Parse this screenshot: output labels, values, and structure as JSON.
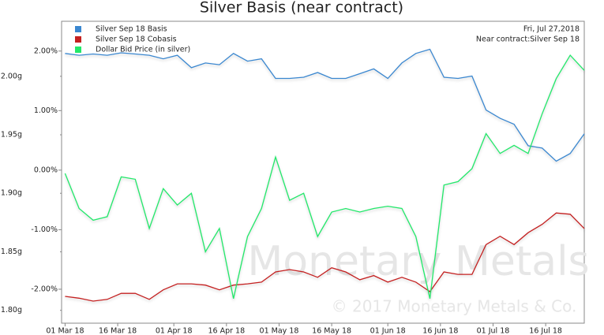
{
  "chart_data": {
    "type": "line",
    "title": "Silver Basis (near contract)",
    "annotations": [
      "Fri, Jul 27,2018",
      "Near contract:Silver Sep 18"
    ],
    "watermark": [
      "Monetary Metals",
      "© 2017 Monetary Metals & Co."
    ],
    "x": [
      "2018-03-01",
      "2018-03-05",
      "2018-03-09",
      "2018-03-13",
      "2018-03-17",
      "2018-03-21",
      "2018-03-25",
      "2018-03-29",
      "2018-04-02",
      "2018-04-06",
      "2018-04-10",
      "2018-04-14",
      "2018-04-18",
      "2018-04-22",
      "2018-04-26",
      "2018-04-30",
      "2018-05-04",
      "2018-05-08",
      "2018-05-12",
      "2018-05-16",
      "2018-05-20",
      "2018-05-24",
      "2018-05-28",
      "2018-06-01",
      "2018-06-05",
      "2018-06-09",
      "2018-06-13",
      "2018-06-17",
      "2018-06-21",
      "2018-06-25",
      "2018-06-29",
      "2018-07-03",
      "2018-07-07",
      "2018-07-11",
      "2018-07-15",
      "2018-07-19",
      "2018-07-23",
      "2018-07-27"
    ],
    "xlim": [
      "2018-02-28",
      "2018-07-27"
    ],
    "xticks": [
      {
        "value": "2018-03-01",
        "label": "01 Mar 18"
      },
      {
        "value": "2018-03-16",
        "label": "16 Mar 18"
      },
      {
        "value": "2018-04-01",
        "label": "01 Apr 18"
      },
      {
        "value": "2018-04-16",
        "label": "16 Apr 18"
      },
      {
        "value": "2018-05-01",
        "label": "01 May 18"
      },
      {
        "value": "2018-05-16",
        "label": "16 May 18"
      },
      {
        "value": "2018-06-01",
        "label": "01 Jun 18"
      },
      {
        "value": "2018-06-16",
        "label": "16 Jun 18"
      },
      {
        "value": "2018-07-01",
        "label": "01 Jul 18"
      },
      {
        "value": "2018-07-16",
        "label": "16 Jul 18"
      }
    ],
    "ylim": [
      -2.57,
      2.5
    ],
    "yticks": [
      {
        "value": 2,
        "label": "2.00%"
      },
      {
        "value": 1,
        "label": "1.00%"
      },
      {
        "value": 0,
        "label": "0.00%"
      },
      {
        "value": -1,
        "label": "-1.00%"
      },
      {
        "value": -2,
        "label": "-2.00%"
      }
    ],
    "y2lim": [
      1.789,
      2.047
    ],
    "y2ticks": [
      {
        "value": 2,
        "label": "2.00g"
      },
      {
        "value": 1.95,
        "label": "1.95g"
      },
      {
        "value": 1.9,
        "label": "1.90g"
      },
      {
        "value": 1.85,
        "label": "1.85g"
      },
      {
        "value": 1.8,
        "label": "1.80g"
      }
    ],
    "legend": "top-left",
    "grid": false,
    "series": [
      {
        "name": "Silver Sep 18 Basis",
        "color": "#3a87d0",
        "values": [
          1.96,
          1.93,
          1.95,
          1.93,
          1.97,
          1.95,
          1.93,
          1.87,
          1.93,
          1.72,
          1.8,
          1.77,
          1.96,
          1.83,
          1.87,
          1.54,
          1.54,
          1.56,
          1.64,
          1.54,
          1.54,
          1.62,
          1.7,
          1.54,
          1.8,
          1.96,
          2.03,
          1.56,
          1.54,
          1.58,
          1.01,
          0.87,
          0.77,
          0.41,
          0.37,
          0.15,
          0.28,
          0.61
        ]
      },
      {
        "name": "Silver Sep 18 Cobasis",
        "color": "#c42020",
        "values": [
          -2.12,
          -2.15,
          -2.2,
          -2.17,
          -2.07,
          -2.07,
          -2.17,
          -2.01,
          -1.91,
          -1.91,
          -1.93,
          -2.01,
          -1.93,
          -1.91,
          -1.88,
          -1.71,
          -1.67,
          -1.71,
          -1.8,
          -1.64,
          -1.71,
          -1.84,
          -1.77,
          -1.88,
          -1.8,
          -1.88,
          -2.04,
          -1.71,
          -1.75,
          -1.75,
          -1.25,
          -1.11,
          -1.25,
          -1.05,
          -0.91,
          -0.72,
          -0.74,
          -0.98
        ]
      },
      {
        "name": "Dollar Bid Price (in silver)",
        "color": "#22e86a",
        "axis": "y2",
        "values": [
          1.917,
          1.887,
          1.877,
          1.88,
          1.914,
          1.912,
          1.87,
          1.904,
          1.89,
          1.9,
          1.85,
          1.87,
          1.81,
          1.863,
          1.887,
          1.931,
          1.894,
          1.9,
          1.863,
          1.884,
          1.887,
          1.884,
          1.887,
          1.889,
          1.887,
          1.863,
          1.81,
          1.907,
          1.91,
          1.921,
          1.951,
          1.934,
          1.941,
          1.934,
          1.968,
          1.998,
          2.018,
          2.005
        ]
      }
    ]
  }
}
